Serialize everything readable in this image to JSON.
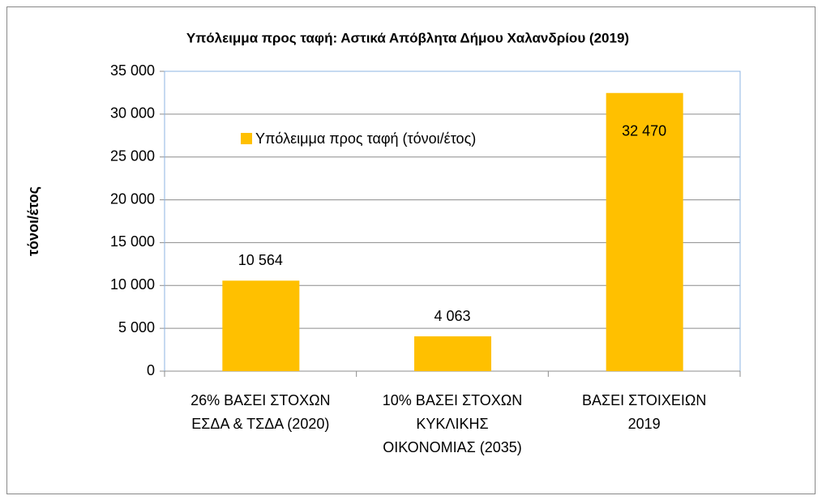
{
  "chart_data": {
    "type": "bar",
    "title": "Υπόλειμμα προς ταφή: Αστικά Απόβλητα Δήμου Χαλανδρίου (2019)",
    "y_label": "τόνοι/έτος",
    "categories": [
      "26% ΒΑΣΕΙ ΣΤΟΧΩΝ\nΕΣΔΑ & ΤΣΔΑ (2020)",
      "10% ΒΑΣΕΙ ΣΤΟΧΩΝ\nΚΥΚΛΙΚΗΣ\nΟΙΚΟΝΟΜΙΑΣ (2035)",
      "ΒΑΣΕΙ ΣΤΟΙΧΕΙΩΝ\n2019"
    ],
    "series": [
      {
        "name": "Υπόλειμμα προς ταφή (τόνοι/έτος)",
        "color": "#ffc000",
        "values": [
          10564,
          4063,
          32470
        ],
        "value_labels": [
          "10 564",
          "4 063",
          "32 470"
        ]
      }
    ],
    "ylim": [
      0,
      35000
    ],
    "yticks": [
      0,
      {
        "value": 5000,
        "label": "5 000"
      },
      {
        "value": 10000,
        "label": "10 000"
      },
      {
        "value": 15000,
        "label": "15 000"
      },
      {
        "value": 20000,
        "label": "20 000"
      },
      {
        "value": 25000,
        "label": "25 000"
      },
      {
        "value": 30000,
        "label": "30 000"
      },
      {
        "value": 35000,
        "label": "35 000"
      }
    ],
    "grid": true
  }
}
